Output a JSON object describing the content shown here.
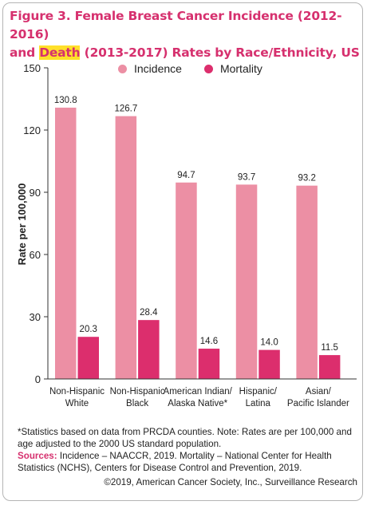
{
  "title": {
    "line1": "Figure 3. Female Breast Cancer Incidence (2012-2016)",
    "line2_pre": "and ",
    "line2_highlight": "Death",
    "line2_post": " (2013-2017) Rates by Race/Ethnicity, US"
  },
  "colors": {
    "incidence": "#ec8fa4",
    "mortality": "#dc2e6d",
    "title": "#d6306e",
    "highlight": "#ffe02a"
  },
  "chart_data": {
    "type": "bar",
    "categories": [
      [
        "Non-Hispanic",
        "White"
      ],
      [
        "Non-Hispanic",
        "Black"
      ],
      [
        "American Indian/",
        "Alaska Native*"
      ],
      [
        "Hispanic/",
        "Latina"
      ],
      [
        "Asian/",
        "Pacific Islander"
      ]
    ],
    "series": [
      {
        "name": "Incidence",
        "values": [
          130.8,
          126.7,
          94.7,
          93.7,
          93.2
        ],
        "labels": [
          "130.8",
          "126.7",
          "94.7",
          "93.7",
          "93.2"
        ]
      },
      {
        "name": "Mortality",
        "values": [
          20.3,
          28.4,
          14.6,
          14.0,
          11.5
        ],
        "labels": [
          "20.3",
          "28.4",
          "14.6",
          "14.0",
          "11.5"
        ]
      }
    ],
    "ylabel": "Rate per 100,000",
    "ylim": [
      0,
      150
    ],
    "yticks": [
      0,
      30,
      60,
      90,
      120,
      150
    ],
    "grid": false,
    "legend": "top"
  },
  "notes": {
    "statistics": "*Statistics based on data from PRCDA counties. Note: Rates are per 100,000 and age adjusted to the 2000 US standard population.",
    "sources_label": "Sources:",
    "sources_text": " Incidence – NAACCR, 2019. Mortality – National Center for Health Statistics (NCHS), Centers for Disease Control and Prevention, 2019.",
    "copyright": "©2019, American Cancer Society, Inc., Surveillance Research"
  }
}
